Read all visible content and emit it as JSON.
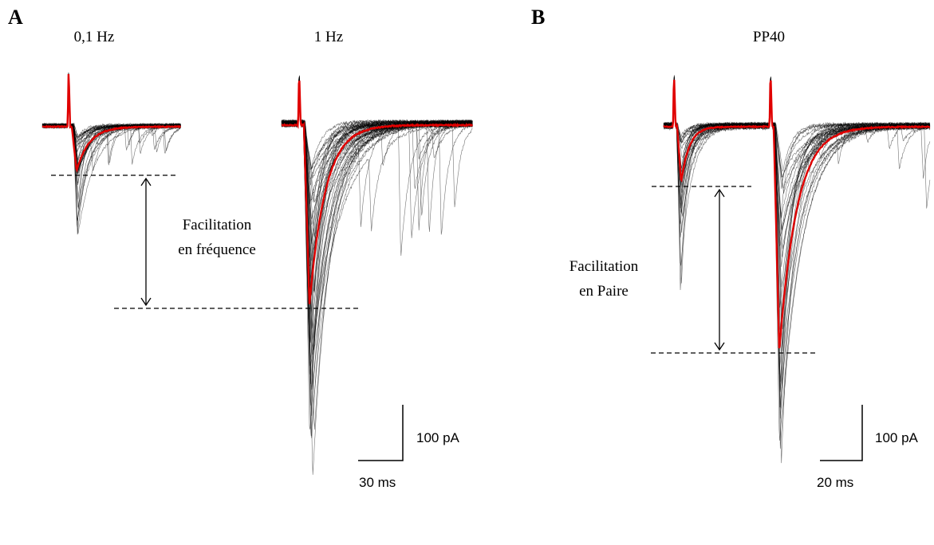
{
  "panels": {
    "A": {
      "label": "A",
      "left_condition": "0,1 Hz",
      "right_condition": "1 Hz",
      "annotation_line1": "Facilitation",
      "annotation_line2": "en fréquence",
      "scale_current": "100 pA",
      "scale_time": "30 ms"
    },
    "B": {
      "label": "B",
      "condition": "PP40",
      "annotation_line1": "Facilitation",
      "annotation_line2": "en Paire",
      "scale_current": "100 pA",
      "scale_time": "20 ms"
    }
  },
  "colors": {
    "average_trace": "#e00000",
    "individual_traces": "#000000"
  }
}
